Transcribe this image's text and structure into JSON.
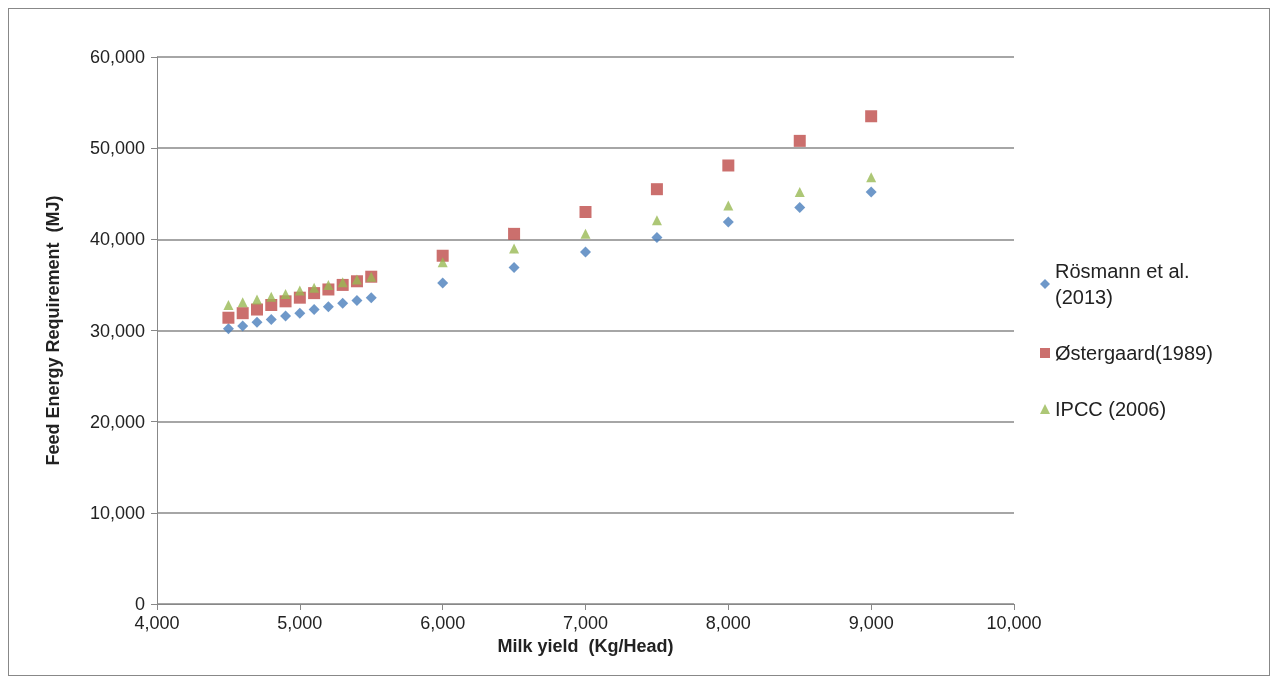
{
  "chart_data": {
    "type": "scatter",
    "xlabel": "Milk yield  (Kg/Head)",
    "ylabel": "Feed Energy Requirement  (MJ)",
    "x": [
      4500,
      4600,
      4700,
      4800,
      4900,
      5000,
      5100,
      5200,
      5300,
      5400,
      5500,
      6000,
      6500,
      7000,
      7500,
      8000,
      8500,
      9000
    ],
    "series": [
      {
        "name": "Rösmann et al. (2013)",
        "color": "#4a7ebb",
        "marker": "diamond",
        "values": [
          30200,
          30500,
          30900,
          31200,
          31600,
          31900,
          32300,
          32600,
          33000,
          33300,
          33600,
          35200,
          36900,
          38600,
          40200,
          41900,
          43500,
          45200
        ]
      },
      {
        "name": "Østergaard(1989)",
        "color": "#be4b48",
        "marker": "square",
        "values": [
          31400,
          31900,
          32300,
          32800,
          33200,
          33600,
          34100,
          34500,
          35000,
          35400,
          35900,
          38200,
          40600,
          43000,
          45500,
          48100,
          50800,
          53500
        ]
      },
      {
        "name": "IPCC (2006)",
        "color": "#98b954",
        "marker": "triangle",
        "values": [
          32800,
          33100,
          33400,
          33700,
          34000,
          34400,
          34700,
          35000,
          35300,
          35600,
          35900,
          37500,
          39000,
          40600,
          42100,
          43700,
          45200,
          46800
        ]
      }
    ],
    "xlim": [
      4000,
      10000
    ],
    "xticks": [
      {
        "value": 4000,
        "label": "4,000"
      },
      {
        "value": 5000,
        "label": "5,000"
      },
      {
        "value": 6000,
        "label": "6,000"
      },
      {
        "value": 7000,
        "label": "7,000"
      },
      {
        "value": 8000,
        "label": "8,000"
      },
      {
        "value": 9000,
        "label": "9,000"
      },
      {
        "value": 10000,
        "label": "10,000"
      }
    ],
    "ylim": [
      0,
      60000
    ],
    "yticks": [
      0,
      {
        "value": 10000,
        "label": "10,000"
      },
      {
        "value": 20000,
        "label": "20,000"
      },
      {
        "value": 30000,
        "label": "30,000"
      },
      {
        "value": 40000,
        "label": "40,000"
      },
      {
        "value": 50000,
        "label": "50,000"
      },
      {
        "value": 60000,
        "label": "60,000"
      }
    ],
    "grid": "y",
    "legend": "right"
  }
}
